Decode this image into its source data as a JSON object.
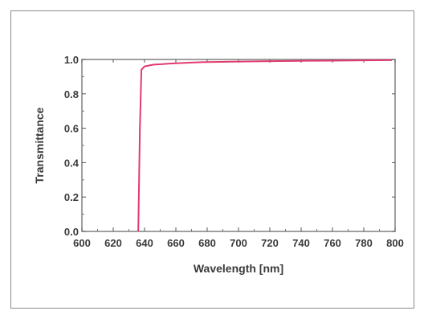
{
  "chart_data": {
    "type": "line",
    "xlabel": "Wavelength [nm]",
    "ylabel": "Transmittance",
    "xlim": [
      600,
      800
    ],
    "ylim": [
      0.0,
      1.0
    ],
    "x_ticks": [
      "600",
      "620",
      "640",
      "660",
      "680",
      "700",
      "720",
      "740",
      "760",
      "780",
      "800"
    ],
    "y_ticks": [
      "0.0",
      "0.2",
      "0.4",
      "0.6",
      "0.8",
      "1.0"
    ],
    "grid": false,
    "legend": "none",
    "series": [
      {
        "color": "#e23a6e",
        "x": [
          636,
          637,
          638,
          640,
          643,
          646,
          650,
          655,
          660,
          670,
          680,
          700,
          720,
          740,
          760,
          780,
          798
        ],
        "y": [
          0.0,
          0.6,
          0.94,
          0.96,
          0.965,
          0.97,
          0.972,
          0.975,
          0.978,
          0.982,
          0.985,
          0.988,
          0.99,
          0.992,
          0.993,
          0.995,
          0.996
        ]
      }
    ]
  }
}
